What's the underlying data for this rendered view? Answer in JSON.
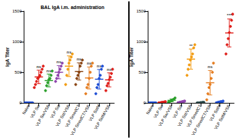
{
  "chart_data": [
    {
      "type": "scatter",
      "title": "BAL IgA i.m. administration",
      "y_label": "IgA Titer",
      "categories": [
        "Naive",
        "VLP Sw",
        "VLP Sw/VSP",
        "VLP Sst",
        "VLP Sst/VSP",
        "VLP SmodCT",
        "VLP SmodCT/VSP",
        "VLP SstM",
        "VLP SstM/VSP"
      ],
      "colors": [
        "#1f4fd6",
        "#e0201b",
        "#2ca02c",
        "#8e44ad",
        "#f39c12",
        "#8b4513",
        "#e67e22",
        "#1f4fd6",
        "#e0201b"
      ],
      "values": [
        [
          0,
          0,
          0,
          0,
          0,
          0,
          0,
          0
        ],
        [
          250,
          300,
          350,
          400,
          420,
          450,
          500,
          550,
          600
        ],
        [
          200,
          280,
          330,
          380,
          400,
          450,
          520
        ],
        [
          350,
          400,
          450,
          500,
          550,
          600,
          650
        ],
        [
          300,
          450,
          550,
          650,
          700,
          750,
          800
        ],
        [
          300,
          400,
          450,
          500,
          600,
          650,
          700
        ],
        [
          150,
          250,
          300,
          400,
          500,
          600,
          650
        ],
        [
          150,
          250,
          300,
          400,
          450,
          550,
          600
        ],
        [
          200,
          280,
          320,
          380,
          420,
          480,
          550
        ]
      ],
      "means": [
        0,
        424,
        366,
        500,
        600,
        514,
        407,
        386,
        376
      ],
      "sd": [
        0,
        110,
        105,
        108,
        170,
        140,
        180,
        160,
        115
      ],
      "annotations": [
        null,
        "ns",
        "ns",
        "ns",
        "ns",
        "ns",
        "ns",
        "ns",
        "ns"
      ],
      "ylim": [
        0,
        1500
      ],
      "yticks": [
        0,
        500,
        1000,
        1500
      ],
      "grid": false
    },
    {
      "type": "scatter",
      "y_label": "IgA Titer",
      "categories": [
        "Naive",
        "VLP Sw",
        "VLP Sw/VSP",
        "VLP Sst",
        "VLP Sst/VSP",
        "VLP SmodCT",
        "VLP SmodCT/VSP",
        "VLP SstM",
        "VLP SstM/VSP"
      ],
      "colors": [
        "#1f4fd6",
        "#e0201b",
        "#2ca02c",
        "#8e44ad",
        "#f39c12",
        "#2f4f4f",
        "#e67e22",
        "#1f4fd6",
        "#e0201b"
      ],
      "values": [
        [
          0,
          0,
          0,
          0,
          0,
          0,
          0
        ],
        [
          0,
          0,
          5,
          10,
          10,
          15,
          20
        ],
        [
          10,
          20,
          30,
          40,
          50,
          60,
          80
        ],
        [
          0,
          5,
          10,
          15,
          20,
          25,
          30
        ],
        [
          450,
          550,
          620,
          700,
          750,
          800,
          900,
          950
        ],
        [
          0,
          0,
          0,
          5,
          5,
          10,
          10
        ],
        [
          50,
          150,
          250,
          300,
          400,
          500,
          650
        ],
        [
          0,
          5,
          10,
          15,
          20,
          20,
          30
        ],
        [
          800,
          950,
          1050,
          1150,
          1250,
          1350,
          1450
        ]
      ],
      "means": [
        0,
        9,
        41,
        15,
        715,
        4,
        329,
        14,
        1143
      ],
      "sd": [
        0,
        7,
        23,
        11,
        165,
        4,
        200,
        10,
        230
      ],
      "annotations": [
        null,
        null,
        null,
        null,
        "**",
        null,
        "ns",
        null,
        "***"
      ],
      "ylim": [
        0,
        1500
      ],
      "yticks": [
        0,
        500,
        1000,
        1500
      ],
      "grid": false
    }
  ]
}
